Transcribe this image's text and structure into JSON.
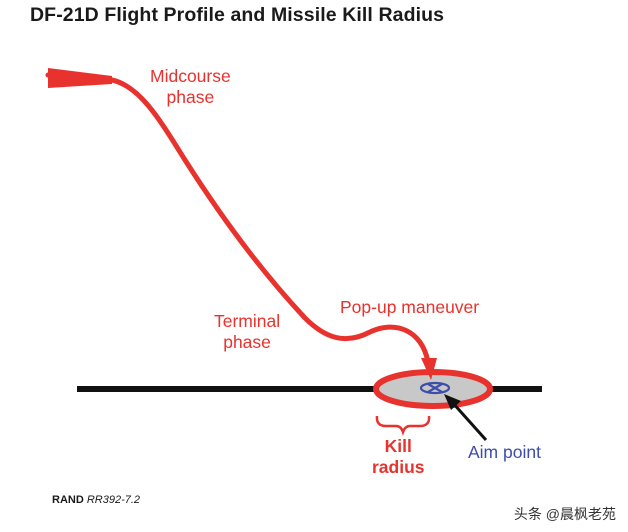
{
  "title": "DF-21D Flight Profile and Missile Kill Radius",
  "labels": {
    "midcourse": [
      "Midcourse",
      "phase"
    ],
    "terminal": [
      "Terminal",
      "phase"
    ],
    "popup": "Pop-up maneuver",
    "kill_radius": [
      "Kill",
      "radius"
    ],
    "aim_point": "Aim point"
  },
  "footer": {
    "org": "RAND",
    "code": "RR392-7.2"
  },
  "watermark": "头条 @晨枫老苑",
  "colors": {
    "trajectory": "#e8322d",
    "aim_point": "#3c4ea8",
    "ground": "#111111",
    "kill_zone_fill": "#c8c8c8"
  }
}
